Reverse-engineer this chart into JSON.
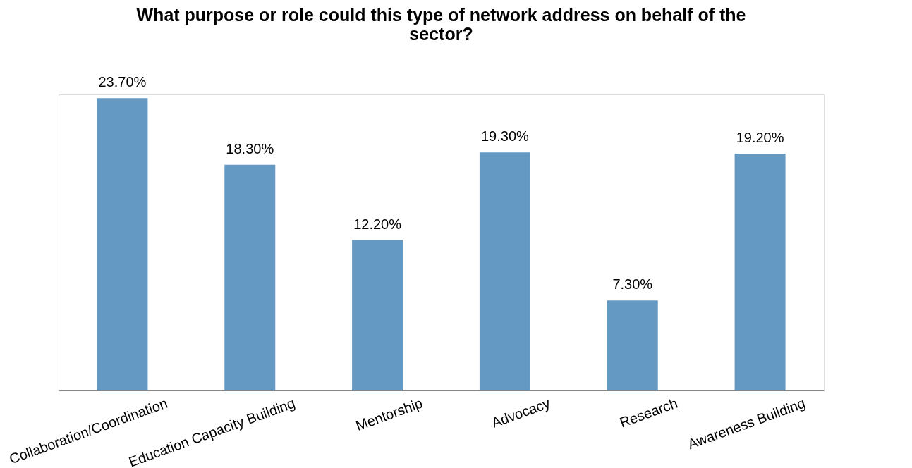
{
  "chart_data": {
    "type": "bar",
    "title": "What purpose or role could this type of network address on behalf of the sector?",
    "categories": [
      "Collaboration/Coordination",
      "Education Capacity Building",
      "Mentorship",
      "Advocacy",
      "Research",
      "Awareness Building"
    ],
    "values": [
      23.7,
      18.3,
      12.2,
      19.3,
      7.3,
      19.2
    ],
    "value_labels": [
      "23.70%",
      "18.30%",
      "12.20%",
      "19.30%",
      "7.30%",
      "19.20%"
    ],
    "color": "#6399c3"
  }
}
